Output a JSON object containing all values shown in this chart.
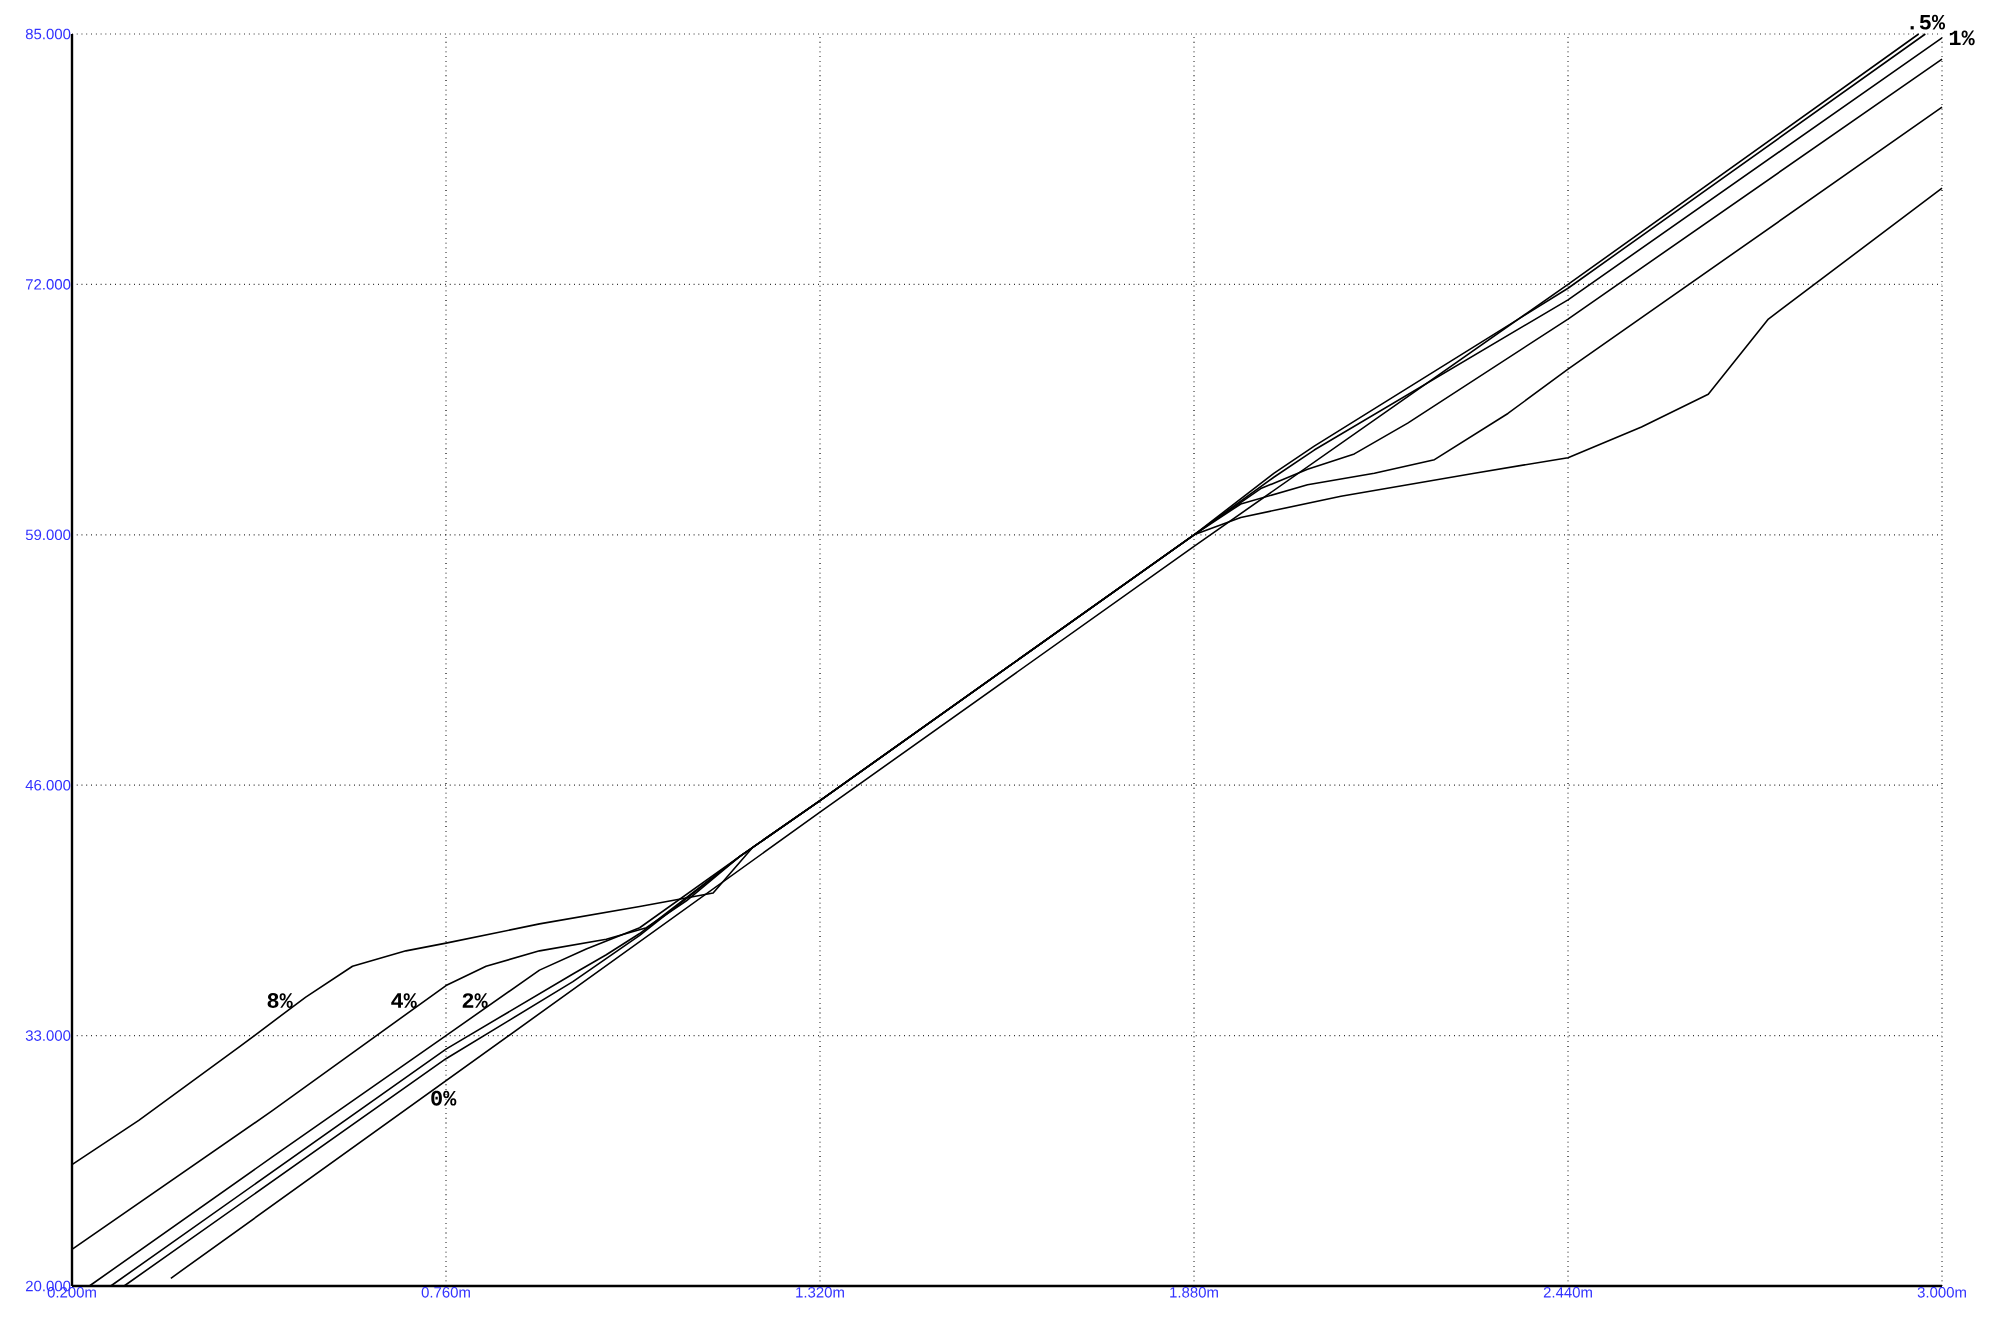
{
  "chart_data": {
    "type": "line",
    "xlim": [
      0.2,
      3.0
    ],
    "ylim": [
      20,
      85
    ],
    "xticks": [
      {
        "value": 0.2,
        "label": "0.200m"
      },
      {
        "value": 0.76,
        "label": "0.760m"
      },
      {
        "value": 1.32,
        "label": "1.320m"
      },
      {
        "value": 1.88,
        "label": "1.880m"
      },
      {
        "value": 2.44,
        "label": "2.440m"
      },
      {
        "value": 3.0,
        "label": "3.000m"
      }
    ],
    "yticks": [
      {
        "value": 20,
        "label": "20.000"
      },
      {
        "value": 33,
        "label": "33.000"
      },
      {
        "value": 46,
        "label": "46.000"
      },
      {
        "value": 59,
        "label": "59.000"
      },
      {
        "value": 72,
        "label": "72.000"
      },
      {
        "value": 85,
        "label": "85.000"
      }
    ],
    "grid": true,
    "series": [
      {
        "name": "0%",
        "color": "#000000",
        "x": [
          0.348,
          1.32,
          1.88,
          2.44,
          2.965
        ],
        "values": [
          20.4,
          44.6,
          58.4,
          72.0,
          85.0
        ]
      },
      {
        "name": ".5%",
        "color": "#000000",
        "x": [
          0.278,
          0.76,
          0.95,
          1.05,
          1.2,
          1.32,
          1.6,
          1.88,
          2.0,
          2.06,
          2.44,
          2.975
        ],
        "values": [
          20.0,
          31.8,
          35.8,
          38.2,
          42.3,
          45.2,
          52.1,
          59.0,
          62.2,
          63.6,
          71.8,
          85.0
        ]
      },
      {
        "name": "1%",
        "color": "#000000",
        "x": [
          0.258,
          0.76,
          0.95,
          1.0,
          1.05,
          1.2,
          1.32,
          1.6,
          1.88,
          2.0,
          2.06,
          2.44,
          3.0
        ],
        "values": [
          20.0,
          32.3,
          36.2,
          37.2,
          38.3,
          42.3,
          45.2,
          52.1,
          59.0,
          62.0,
          63.4,
          71.2,
          84.8
        ]
      },
      {
        "name": "2%",
        "color": "#000000",
        "x": [
          0.226,
          0.5,
          0.76,
          0.9,
          0.97,
          1.05,
          1.2,
          1.32,
          1.6,
          1.88,
          1.98,
          2.05,
          2.12,
          2.2,
          2.44,
          3.0
        ],
        "values": [
          20.0,
          26.7,
          33.0,
          36.4,
          37.5,
          38.6,
          42.3,
          45.2,
          52.1,
          59.0,
          61.4,
          62.4,
          63.2,
          64.8,
          70.2,
          83.7
        ]
      },
      {
        "name": "4%",
        "color": "#000000",
        "x": [
          0.2,
          0.5,
          0.76,
          0.82,
          0.9,
          1.0,
          1.06,
          1.12,
          1.2,
          1.32,
          1.6,
          1.88,
          1.95,
          2.05,
          2.15,
          2.24,
          2.35,
          2.44,
          3.0
        ],
        "values": [
          21.9,
          29.1,
          35.6,
          36.6,
          37.4,
          38.0,
          38.6,
          40.0,
          42.3,
          45.2,
          52.1,
          59.0,
          60.6,
          61.6,
          62.2,
          62.9,
          65.3,
          67.6,
          81.2
        ]
      },
      {
        "name": "8%",
        "color": "#000000",
        "x": [
          0.2,
          0.3,
          0.45,
          0.55,
          0.62,
          0.7,
          0.76,
          0.9,
          1.05,
          1.16,
          1.22,
          1.32,
          1.6,
          1.88,
          1.95,
          2.1,
          2.3,
          2.44,
          2.55,
          2.65,
          2.74,
          3.0
        ],
        "values": [
          26.3,
          28.6,
          32.4,
          35.0,
          36.6,
          37.4,
          37.8,
          38.8,
          39.7,
          40.4,
          42.8,
          45.2,
          52.1,
          59.0,
          59.9,
          61.0,
          62.2,
          63.0,
          64.6,
          66.3,
          70.2,
          77.0
        ]
      }
    ]
  }
}
